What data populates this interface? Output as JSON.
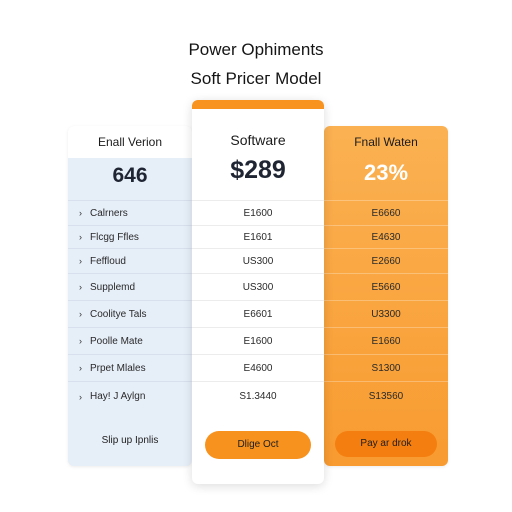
{
  "header": {
    "line1": "Power Ophiments",
    "line2": "Soft Pricег Model"
  },
  "plans": {
    "left": {
      "name": "Enall Verion",
      "price": "646",
      "features": [
        {
          "label": "Calrners"
        },
        {
          "label": "Flcgg Ffles"
        },
        {
          "label": "Feffloud"
        },
        {
          "label": "Supplemd"
        },
        {
          "label": "Coolitye Tals"
        },
        {
          "label": "Poolle Mate"
        },
        {
          "label": "Prpet Mlales"
        },
        {
          "label": "Hay! J Aylgn"
        }
      ],
      "cta": "Slip up Ipnlis"
    },
    "middle": {
      "name": "Software",
      "price": "$289",
      "values": [
        "E1600",
        "E1601",
        "US300",
        "US300",
        "E6601",
        "E1600",
        "E4600",
        "S1.3440"
      ],
      "cta": "Dlige Oct"
    },
    "right": {
      "name": "Fnall Waten",
      "price": "23%",
      "values": [
        "E6660",
        "E4630",
        "E2660",
        "E5660",
        "U3300",
        "E1660",
        "S1300",
        "S13560"
      ],
      "cta": "Pay ar drok"
    }
  },
  "colors": {
    "accent": "#f7931e",
    "left_card_bg": "#e6eef8",
    "right_card_bg": "#fbb152",
    "price_dark": "#1f2532",
    "price_light": "#ffffff"
  }
}
